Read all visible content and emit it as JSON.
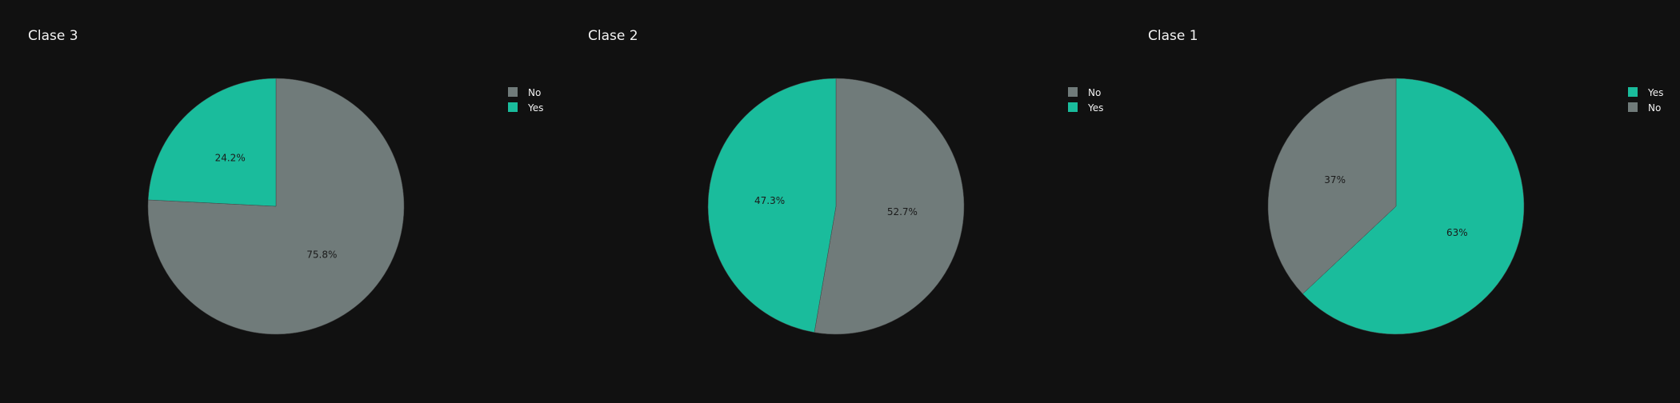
{
  "colors": {
    "background": "#111111",
    "No": "#707b7a",
    "Yes": "#1abc9c",
    "text": "#f2f2f2",
    "label": "#1a1a1a"
  },
  "chart_data": [
    {
      "type": "pie",
      "title": "Clase 3",
      "slices": [
        {
          "label": "No",
          "value": 75.8,
          "text": "75.8%"
        },
        {
          "label": "Yes",
          "value": 24.2,
          "text": "24.2%"
        }
      ],
      "legend": [
        "No",
        "Yes"
      ],
      "legend_position": "top-right"
    },
    {
      "type": "pie",
      "title": "Clase 2",
      "slices": [
        {
          "label": "No",
          "value": 52.7,
          "text": "52.7%"
        },
        {
          "label": "Yes",
          "value": 47.3,
          "text": "47.3%"
        }
      ],
      "legend": [
        "No",
        "Yes"
      ],
      "legend_position": "top-right"
    },
    {
      "type": "pie",
      "title": "Clase 1",
      "slices": [
        {
          "label": "Yes",
          "value": 63,
          "text": "63%"
        },
        {
          "label": "No",
          "value": 37,
          "text": "37%"
        }
      ],
      "legend": [
        "Yes",
        "No"
      ],
      "legend_position": "top-right"
    }
  ]
}
